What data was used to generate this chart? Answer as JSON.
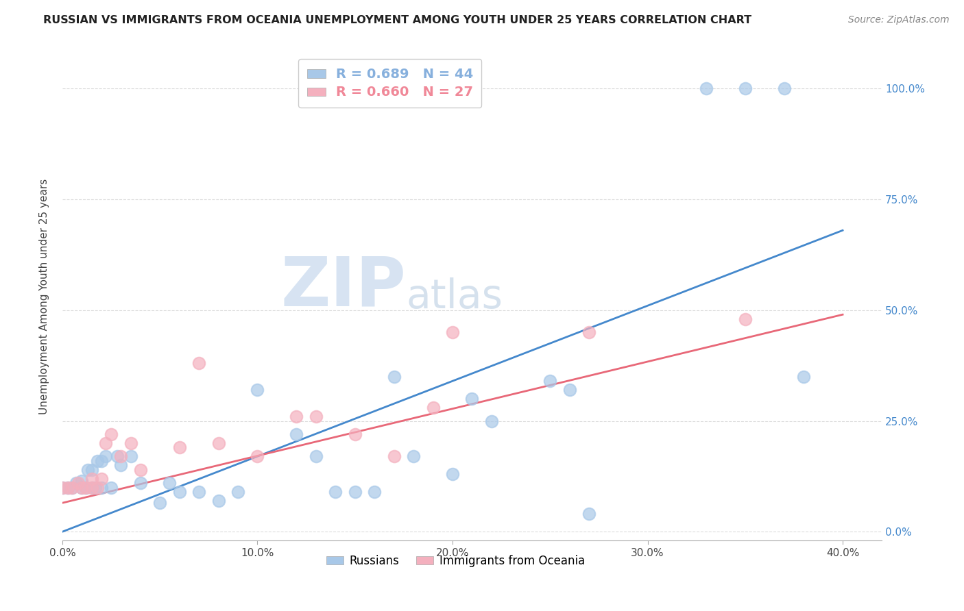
{
  "title": "RUSSIAN VS IMMIGRANTS FROM OCEANIA UNEMPLOYMENT AMONG YOUTH UNDER 25 YEARS CORRELATION CHART",
  "source": "Source: ZipAtlas.com",
  "xlabel_ticks": [
    "0.0%",
    "10.0%",
    "20.0%",
    "30.0%",
    "40.0%"
  ],
  "xlabel_vals": [
    0.0,
    0.1,
    0.2,
    0.3,
    0.4
  ],
  "ylabel": "Unemployment Among Youth under 25 years",
  "ylabel_ticks_labels": [
    "0.0%",
    "25.0%",
    "50.0%",
    "75.0%",
    "100.0%"
  ],
  "ylabel_ticks_vals": [
    0.0,
    0.25,
    0.5,
    0.75,
    1.0
  ],
  "xlim": [
    0.0,
    0.42
  ],
  "ylim": [
    -0.02,
    1.08
  ],
  "legend_entries": [
    {
      "label": "R = 0.689   N = 44",
      "color": "#87b0dd"
    },
    {
      "label": "R = 0.660   N = 27",
      "color": "#f08898"
    }
  ],
  "legend_labels": [
    "Russians",
    "Immigrants from Oceania"
  ],
  "russian_color": "#a8c8e8",
  "oceania_color": "#f4b0be",
  "russian_line_color": "#4488cc",
  "oceania_line_color": "#e86878",
  "watermark_zip": "ZIP",
  "watermark_atlas": "atlas",
  "russian_scatter_x": [
    0.0,
    0.003,
    0.005,
    0.007,
    0.01,
    0.01,
    0.012,
    0.013,
    0.015,
    0.015,
    0.017,
    0.018,
    0.02,
    0.02,
    0.022,
    0.025,
    0.028,
    0.03,
    0.035,
    0.04,
    0.05,
    0.055,
    0.06,
    0.07,
    0.08,
    0.09,
    0.1,
    0.12,
    0.13,
    0.14,
    0.15,
    0.16,
    0.17,
    0.18,
    0.2,
    0.21,
    0.22,
    0.25,
    0.26,
    0.27,
    0.33,
    0.35,
    0.37,
    0.38
  ],
  "russian_scatter_y": [
    0.1,
    0.1,
    0.1,
    0.11,
    0.1,
    0.115,
    0.1,
    0.14,
    0.1,
    0.14,
    0.1,
    0.16,
    0.1,
    0.16,
    0.17,
    0.1,
    0.17,
    0.15,
    0.17,
    0.11,
    0.065,
    0.11,
    0.09,
    0.09,
    0.07,
    0.09,
    0.32,
    0.22,
    0.17,
    0.09,
    0.09,
    0.09,
    0.35,
    0.17,
    0.13,
    0.3,
    0.25,
    0.34,
    0.32,
    0.04,
    1.0,
    1.0,
    1.0,
    0.35
  ],
  "oceania_scatter_x": [
    0.0,
    0.003,
    0.005,
    0.008,
    0.01,
    0.012,
    0.015,
    0.015,
    0.018,
    0.02,
    0.022,
    0.025,
    0.03,
    0.035,
    0.04,
    0.06,
    0.07,
    0.08,
    0.1,
    0.12,
    0.13,
    0.15,
    0.17,
    0.19,
    0.2,
    0.27,
    0.35
  ],
  "oceania_scatter_y": [
    0.1,
    0.1,
    0.1,
    0.11,
    0.1,
    0.1,
    0.1,
    0.12,
    0.1,
    0.12,
    0.2,
    0.22,
    0.17,
    0.2,
    0.14,
    0.19,
    0.38,
    0.2,
    0.17,
    0.26,
    0.26,
    0.22,
    0.17,
    0.28,
    0.45,
    0.45,
    0.48
  ],
  "russian_line_x": [
    0.0,
    0.4
  ],
  "russian_line_y": [
    0.0,
    0.68
  ],
  "oceania_line_x": [
    0.0,
    0.4
  ],
  "oceania_line_y": [
    0.065,
    0.49
  ],
  "background_color": "#ffffff",
  "grid_color": "#cccccc"
}
